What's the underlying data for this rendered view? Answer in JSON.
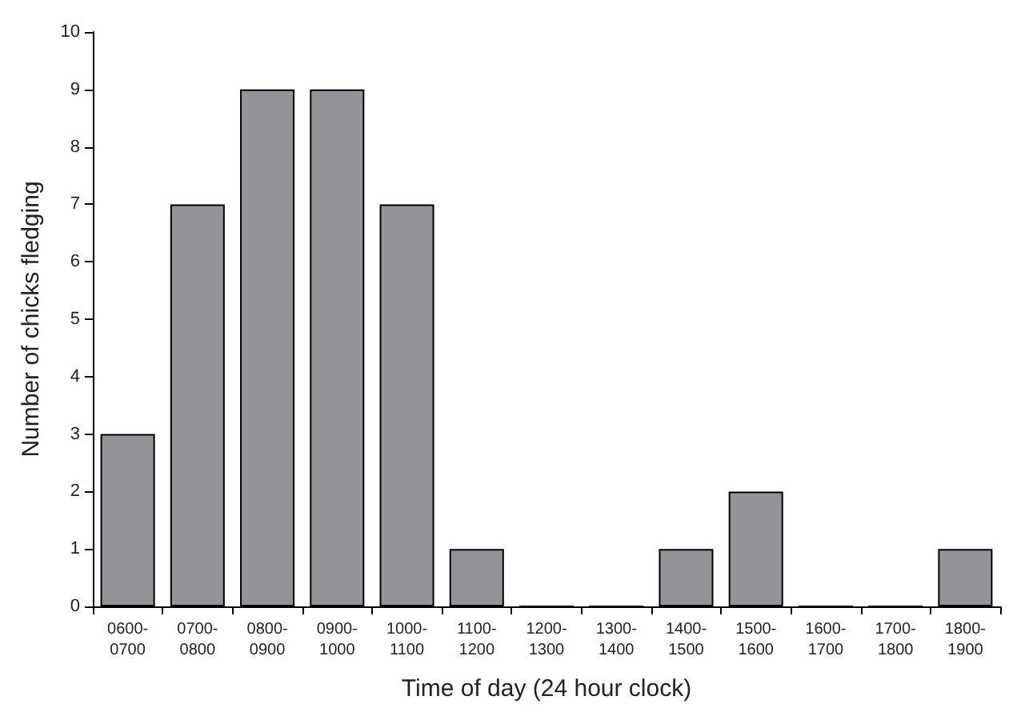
{
  "chart_data": {
    "type": "bar",
    "xlabel": "Time of day (24 hour clock)",
    "ylabel": "Number of chicks fledging",
    "categories": [
      "0600-0700",
      "0700-0800",
      "0800-0900",
      "0900-1000",
      "1000-1100",
      "1100-1200",
      "1200-1300",
      "1300-1400",
      "1400-1500",
      "1500-1600",
      "1600-1700",
      "1700-1800",
      "1800-1900"
    ],
    "values": [
      3,
      7,
      9,
      9,
      7,
      1,
      0,
      0,
      1,
      2,
      0,
      0,
      1
    ],
    "color": "#939398",
    "ylim": [
      0,
      10
    ],
    "yticks": [
      0,
      1,
      2,
      3,
      4,
      5,
      6,
      7,
      8,
      9,
      10
    ],
    "grid": false
  }
}
